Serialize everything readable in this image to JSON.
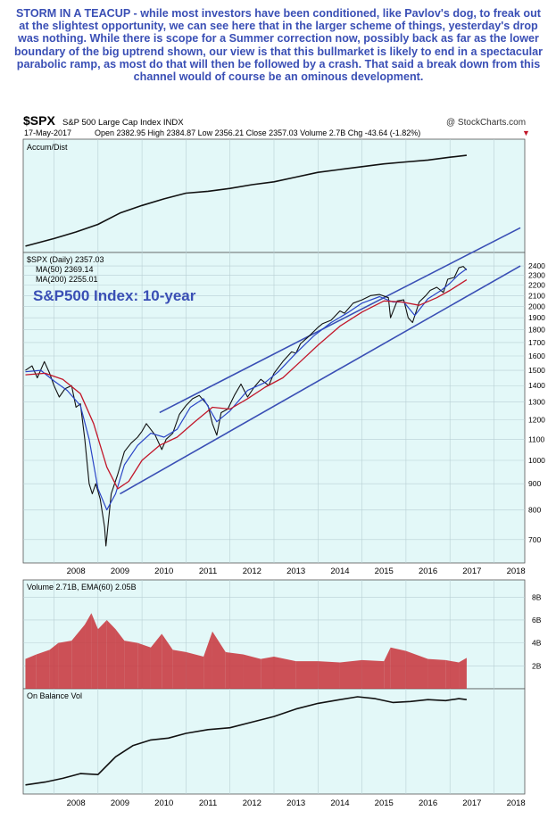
{
  "commentary": "STORM IN A TEACUP - while most investors have been conditioned, like Pavlov's dog, to freak out at the slightest opportunity, we can see here that in the larger scheme of things, yesterday's drop was nothing. While there is scope for a Summer correction now, possibly back as far as the lower boundary of the big uptrend shown, our view is that this bullmarket is likely to end in a spectacular parabolic ramp, as most do that will then be followed by a crash. That said a break down from this channel would of course be an ominous development.",
  "header": {
    "symbol": "$SPX",
    "name": "S&P 500 Large Cap Index  INDX",
    "credit": "@ StockCharts.com",
    "date": "17-May-2017",
    "ohlc": "Open 2382.95  High 2384.87  Low 2356.21  Close 2357.03  Volume 2.7B  Chg -43.64 (-1.82%)",
    "down_arrow": "▼"
  },
  "colors": {
    "panel_bg": "#e3f8f8",
    "grid": "#b9cfd4",
    "price": "#111111",
    "ma50": "#2a44c6",
    "ma200": "#c2172a",
    "channel": "#3a4fb5",
    "volume": "#c8323a",
    "title_blue": "#3a4fb5"
  },
  "chart_data": [
    {
      "type": "line",
      "panel": "Accum/Dist",
      "legend": "Accum/Dist",
      "x": [
        2007.35,
        2008.0,
        2008.5,
        2009.0,
        2009.5,
        2010.0,
        2010.5,
        2011.0,
        2011.5,
        2012.0,
        2012.5,
        2013.0,
        2013.5,
        2014.0,
        2014.5,
        2015.0,
        2015.5,
        2016.0,
        2016.5,
        2017.0,
        2017.38
      ],
      "y": [
        0.02,
        0.1,
        0.17,
        0.25,
        0.37,
        0.45,
        0.52,
        0.58,
        0.6,
        0.63,
        0.67,
        0.7,
        0.75,
        0.8,
        0.83,
        0.86,
        0.89,
        0.91,
        0.93,
        0.96,
        0.98
      ]
    },
    {
      "type": "line",
      "panel": "Price",
      "title": "$SPX (Daily) 2357.03",
      "inline_title": "S&P500 Index: 10-year",
      "scale": "log",
      "ylim": [
        630,
        2550
      ],
      "yticks": [
        700,
        800,
        900,
        1000,
        1100,
        1200,
        1300,
        1400,
        1500,
        1600,
        1700,
        1800,
        1900,
        2000,
        2100,
        2200,
        2300,
        2400
      ],
      "legend_items": [
        "$SPX (Daily) 2357.03",
        "MA(50) 2369.14",
        "MA(200) 2255.01"
      ],
      "series": [
        {
          "name": "$SPX",
          "x": [
            2007.35,
            2007.5,
            2007.62,
            2007.78,
            2007.9,
            2008.0,
            2008.12,
            2008.25,
            2008.4,
            2008.5,
            2008.6,
            2008.7,
            2008.8,
            2008.87,
            2008.95,
            2009.05,
            2009.15,
            2009.18,
            2009.3,
            2009.45,
            2009.6,
            2009.75,
            2009.9,
            2010.0,
            2010.1,
            2010.3,
            2010.45,
            2010.55,
            2010.7,
            2010.85,
            2011.0,
            2011.15,
            2011.3,
            2011.5,
            2011.6,
            2011.7,
            2011.8,
            2011.95,
            2012.1,
            2012.25,
            2012.4,
            2012.55,
            2012.7,
            2012.88,
            2013.0,
            2013.2,
            2013.4,
            2013.5,
            2013.6,
            2013.8,
            2014.0,
            2014.1,
            2014.3,
            2014.5,
            2014.6,
            2014.8,
            2015.0,
            2015.2,
            2015.4,
            2015.6,
            2015.65,
            2015.8,
            2015.95,
            2016.05,
            2016.15,
            2016.3,
            2016.45,
            2016.55,
            2016.7,
            2016.85,
            2016.95,
            2017.1,
            2017.2,
            2017.3,
            2017.38
          ],
          "y": [
            1500,
            1530,
            1450,
            1560,
            1480,
            1400,
            1330,
            1380,
            1400,
            1270,
            1290,
            1100,
            900,
            860,
            900,
            840,
            740,
            680,
            860,
            940,
            1040,
            1080,
            1110,
            1140,
            1180,
            1120,
            1050,
            1100,
            1130,
            1230,
            1280,
            1320,
            1340,
            1280,
            1180,
            1120,
            1240,
            1260,
            1340,
            1410,
            1330,
            1390,
            1440,
            1400,
            1480,
            1560,
            1630,
            1620,
            1690,
            1750,
            1820,
            1850,
            1880,
            1960,
            1940,
            2030,
            2060,
            2100,
            2110,
            2080,
            1900,
            2050,
            2060,
            1900,
            1860,
            2040,
            2100,
            2150,
            2180,
            2130,
            2260,
            2280,
            2380,
            2395,
            2357
          ]
        },
        {
          "name": "MA(50)",
          "x": [
            2007.35,
            2007.7,
            2008.0,
            2008.3,
            2008.6,
            2008.8,
            2009.0,
            2009.2,
            2009.4,
            2009.6,
            2009.9,
            2010.2,
            2010.5,
            2010.8,
            2011.1,
            2011.4,
            2011.7,
            2012.0,
            2012.4,
            2012.8,
            2013.1,
            2013.5,
            2013.9,
            2014.3,
            2014.7,
            2015.0,
            2015.4,
            2015.7,
            2015.95,
            2016.2,
            2016.5,
            2016.8,
            2017.0,
            2017.2,
            2017.38
          ],
          "y": [
            1490,
            1500,
            1430,
            1370,
            1280,
            1100,
            880,
            800,
            860,
            980,
            1070,
            1130,
            1110,
            1150,
            1270,
            1320,
            1190,
            1250,
            1370,
            1420,
            1490,
            1620,
            1750,
            1860,
            1950,
            2030,
            2090,
            2040,
            2040,
            1920,
            2070,
            2150,
            2220,
            2310,
            2369
          ]
        },
        {
          "name": "MA(200)",
          "x": [
            2007.35,
            2007.8,
            2008.2,
            2008.6,
            2008.9,
            2009.2,
            2009.45,
            2009.7,
            2010.0,
            2010.4,
            2010.8,
            2011.2,
            2011.6,
            2012.0,
            2012.4,
            2012.8,
            2013.2,
            2013.6,
            2014.0,
            2014.5,
            2015.0,
            2015.5,
            2015.9,
            2016.3,
            2016.7,
            2017.0,
            2017.38
          ],
          "y": [
            1470,
            1480,
            1440,
            1350,
            1180,
            970,
            880,
            910,
            1000,
            1070,
            1110,
            1190,
            1270,
            1260,
            1320,
            1390,
            1450,
            1560,
            1680,
            1830,
            1950,
            2050,
            2040,
            2010,
            2080,
            2150,
            2255
          ]
        }
      ],
      "channel": {
        "upper": {
          "x": [
            2010.4,
            2018.6
          ],
          "y": [
            1240,
            2850
          ]
        },
        "lower": {
          "x": [
            2009.5,
            2018.6
          ],
          "y": [
            860,
            2400
          ]
        }
      }
    },
    {
      "type": "bar",
      "panel": "Volume",
      "legend": "Volume 2.71B, EMA(60) 2.05B",
      "yticks": [
        "2B",
        "4B",
        "6B",
        "8B"
      ],
      "ylim": [
        0,
        9.5
      ],
      "x": [
        2007.35,
        2007.6,
        2007.9,
        2008.1,
        2008.4,
        2008.7,
        2008.85,
        2009.0,
        2009.2,
        2009.4,
        2009.6,
        2009.9,
        2010.2,
        2010.45,
        2010.7,
        2011.0,
        2011.4,
        2011.6,
        2011.9,
        2012.3,
        2012.7,
        2013.0,
        2013.5,
        2014.0,
        2014.5,
        2015.0,
        2015.5,
        2015.65,
        2016.0,
        2016.5,
        2016.9,
        2017.2,
        2017.38
      ],
      "values": [
        2.6,
        3.0,
        3.4,
        4.0,
        4.2,
        5.6,
        6.6,
        5.2,
        6.0,
        5.2,
        4.2,
        4.0,
        3.6,
        4.8,
        3.4,
        3.2,
        2.8,
        5.0,
        3.2,
        3.0,
        2.6,
        2.8,
        2.4,
        2.4,
        2.3,
        2.5,
        2.4,
        3.6,
        3.3,
        2.6,
        2.5,
        2.3,
        2.7
      ]
    },
    {
      "type": "line",
      "panel": "On Balance Vol",
      "legend": "On Balance Vol",
      "x": [
        2007.35,
        2007.8,
        2008.2,
        2008.6,
        2009.0,
        2009.4,
        2009.8,
        2010.2,
        2010.6,
        2011.0,
        2011.5,
        2012.0,
        2012.5,
        2013.0,
        2013.5,
        2014.0,
        2014.5,
        2014.9,
        2015.3,
        2015.7,
        2016.1,
        2016.5,
        2016.9,
        2017.2,
        2017.38
      ],
      "y": [
        0.05,
        0.08,
        0.12,
        0.17,
        0.16,
        0.35,
        0.47,
        0.53,
        0.55,
        0.6,
        0.64,
        0.66,
        0.72,
        0.78,
        0.86,
        0.92,
        0.96,
        0.99,
        0.97,
        0.93,
        0.94,
        0.96,
        0.95,
        0.97,
        0.96
      ]
    }
  ],
  "x_axis": {
    "labels": [
      "2008",
      "2009",
      "2010",
      "2011",
      "2012",
      "2013",
      "2014",
      "2015",
      "2016",
      "2017",
      "2018"
    ]
  }
}
